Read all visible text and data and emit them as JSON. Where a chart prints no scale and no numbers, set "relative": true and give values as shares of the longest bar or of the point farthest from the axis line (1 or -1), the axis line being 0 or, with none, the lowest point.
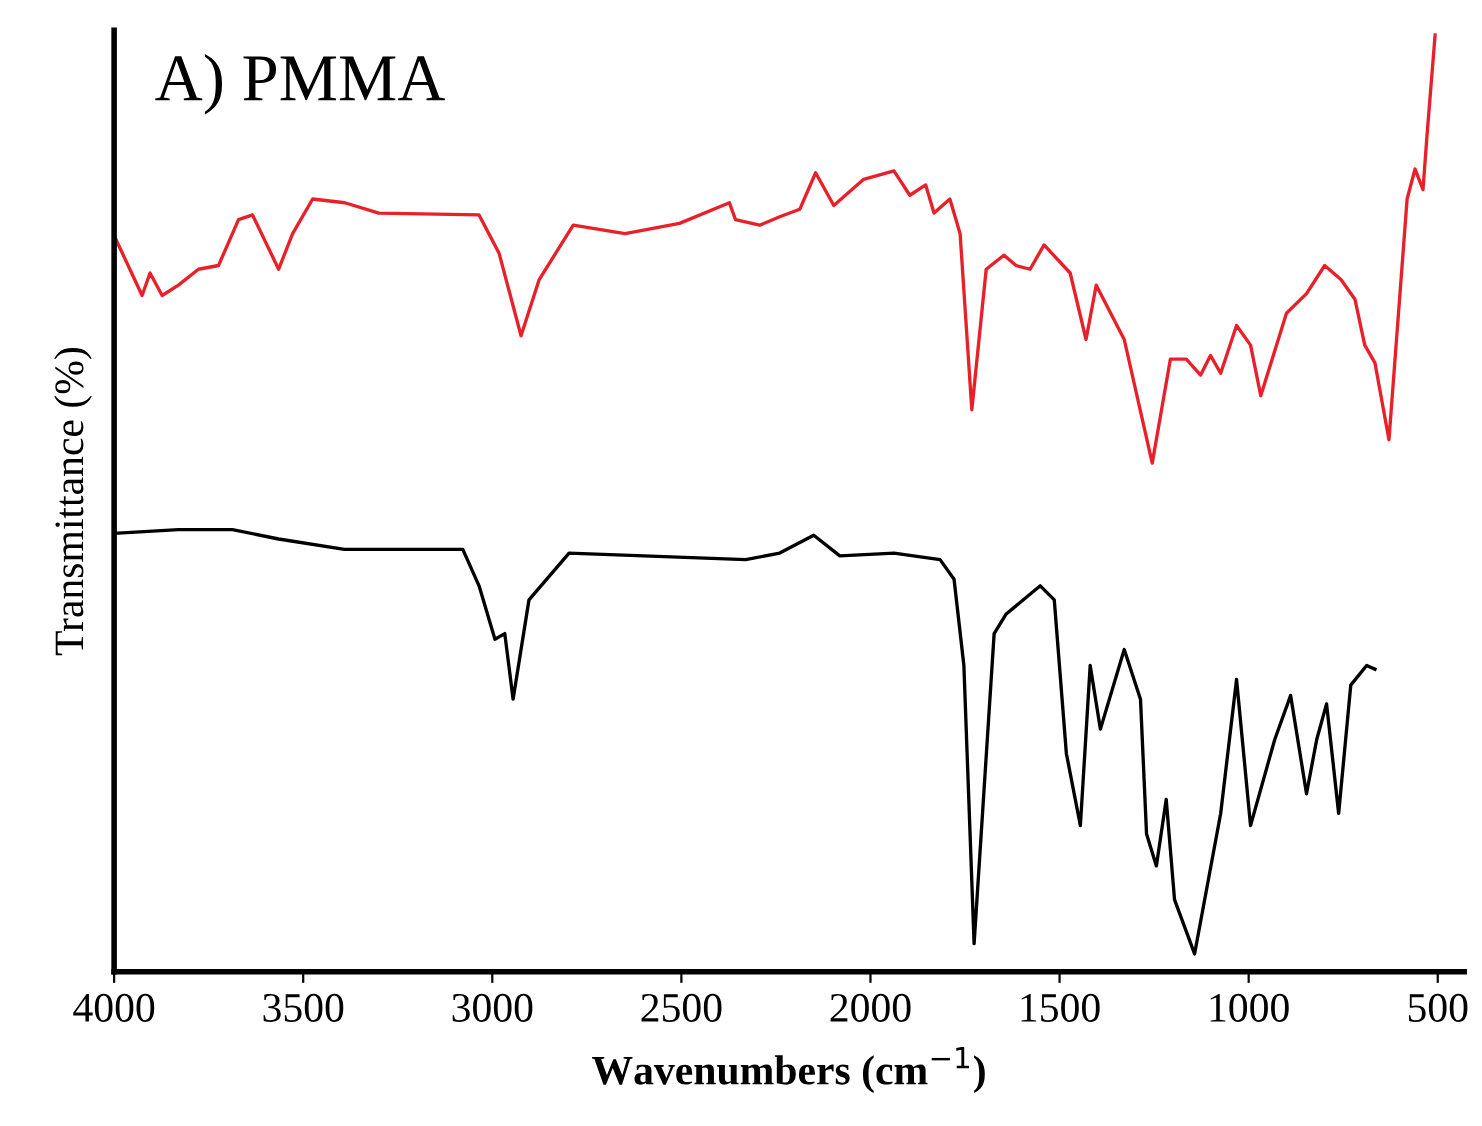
{
  "chart_data": {
    "type": "line",
    "title": "A) PMMA",
    "xlabel": "Wavenumbers (cm$^{−1}$)",
    "ylabel": "Transmittance (%)",
    "relative": true,
    "xlim": [
      4000,
      430
    ],
    "xticks": [
      4000,
      3500,
      3000,
      2500,
      2000,
      1500,
      1000,
      500
    ],
    "grid": false,
    "tick_labels": "x",
    "series": [
      {
        "color": "#e8202a",
        "x": [
          4000,
          3926,
          3905,
          3873,
          3830,
          3777,
          3724,
          3671,
          3634,
          3565,
          3528,
          3475,
          3390,
          3300,
          3035,
          2982,
          2924,
          2876,
          2786,
          2649,
          2505,
          2373,
          2357,
          2293,
          2240,
          2187,
          2145,
          2097,
          2018,
          1938,
          1896,
          1854,
          1832,
          1790,
          1763,
          1732,
          1694,
          1647,
          1615,
          1578,
          1541,
          1472,
          1430,
          1403,
          1329,
          1255,
          1207,
          1165,
          1127,
          1101,
          1074,
          1032,
          995,
          968,
          900,
          847,
          799,
          756,
          719,
          693,
          666,
          629,
          581,
          560,
          539,
          528,
          507
        ],
        "values": [
          0.786,
          0.722,
          0.746,
          0.722,
          0.733,
          0.75,
          0.754,
          0.803,
          0.808,
          0.75,
          0.788,
          0.825,
          0.821,
          0.81,
          0.808,
          0.767,
          0.679,
          0.739,
          0.797,
          0.788,
          0.799,
          0.821,
          0.803,
          0.797,
          0.806,
          0.814,
          0.853,
          0.818,
          0.846,
          0.855,
          0.829,
          0.84,
          0.81,
          0.825,
          0.788,
          0.6,
          0.75,
          0.765,
          0.754,
          0.75,
          0.776,
          0.746,
          0.675,
          0.733,
          0.675,
          0.543,
          0.654,
          0.654,
          0.637,
          0.658,
          0.639,
          0.69,
          0.669,
          0.615,
          0.703,
          0.724,
          0.754,
          0.739,
          0.718,
          0.669,
          0.65,
          0.568,
          0.825,
          0.857,
          0.835,
          0.895,
          1.0
        ]
      },
      {
        "color": "#000000",
        "x": [
          4000,
          3830,
          3687,
          3565,
          3391,
          3078,
          3035,
          2993,
          2967,
          2945,
          2903,
          2797,
          2330,
          2240,
          2150,
          2081,
          1938,
          1816,
          1779,
          1753,
          1726,
          1673,
          1641,
          1551,
          1514,
          1482,
          1445,
          1419,
          1392,
          1329,
          1286,
          1270,
          1244,
          1218,
          1196,
          1143,
          1074,
          1032,
          995,
          931,
          889,
          847,
          820,
          794,
          762,
          730,
          688,
          666
        ],
        "values": [
          0.468,
          0.472,
          0.472,
          0.462,
          0.451,
          0.451,
          0.412,
          0.355,
          0.361,
          0.291,
          0.397,
          0.447,
          0.44,
          0.447,
          0.466,
          0.444,
          0.447,
          0.44,
          0.419,
          0.327,
          0.03,
          0.361,
          0.382,
          0.412,
          0.397,
          0.233,
          0.156,
          0.327,
          0.259,
          0.344,
          0.291,
          0.147,
          0.113,
          0.184,
          0.077,
          0.019,
          0.169,
          0.312,
          0.156,
          0.248,
          0.295,
          0.19,
          0.248,
          0.286,
          0.169,
          0.306,
          0.327,
          0.323
        ]
      }
    ]
  }
}
